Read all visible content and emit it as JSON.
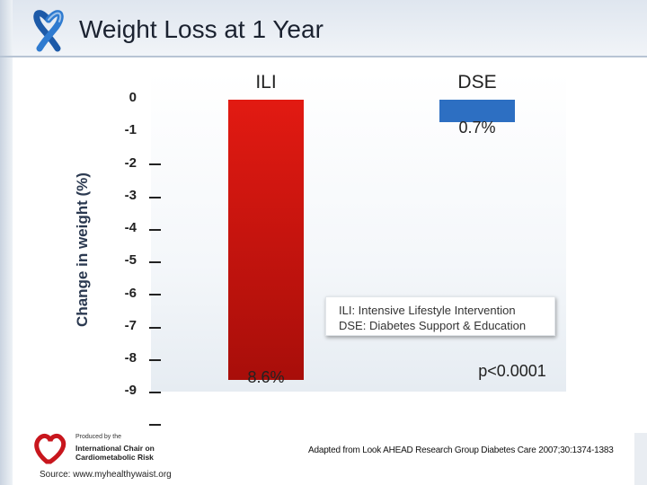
{
  "header": {
    "title": "Weight Loss at 1 Year"
  },
  "chart_data": {
    "type": "bar",
    "title": "Weight Loss at 1 Year",
    "xlabel": "",
    "ylabel": "Change in weight (%)",
    "categories": [
      "ILI",
      "DSE"
    ],
    "values": [
      -8.6,
      -0.7
    ],
    "value_labels": [
      "8.6%",
      "0.7%"
    ],
    "ylim": [
      -9,
      0
    ],
    "yticks": [
      "0",
      "-1",
      "-2",
      "-3",
      "-4",
      "-5",
      "-6",
      "-7",
      "-8",
      "-9"
    ],
    "grid": false,
    "colors": {
      "ili_top": "#e21a12",
      "ili_bottom": "#a80e0a",
      "dse": "#2d6fc2"
    }
  },
  "legend": {
    "line1": "ILI: Intensive Lifestyle Intervention",
    "line2": "DSE: Diabetes Support & Education"
  },
  "p_value": "p<0.0001",
  "footer": {
    "logo_line1": "Produced by the",
    "logo_line2": "International Chair on",
    "logo_line3": "Cardiometabolic Risk",
    "source": "Source: www.myhealthywaist.org",
    "citation": "Adapted from Look AHEAD Research Group Diabetes Care 2007;30:1374-1383"
  }
}
